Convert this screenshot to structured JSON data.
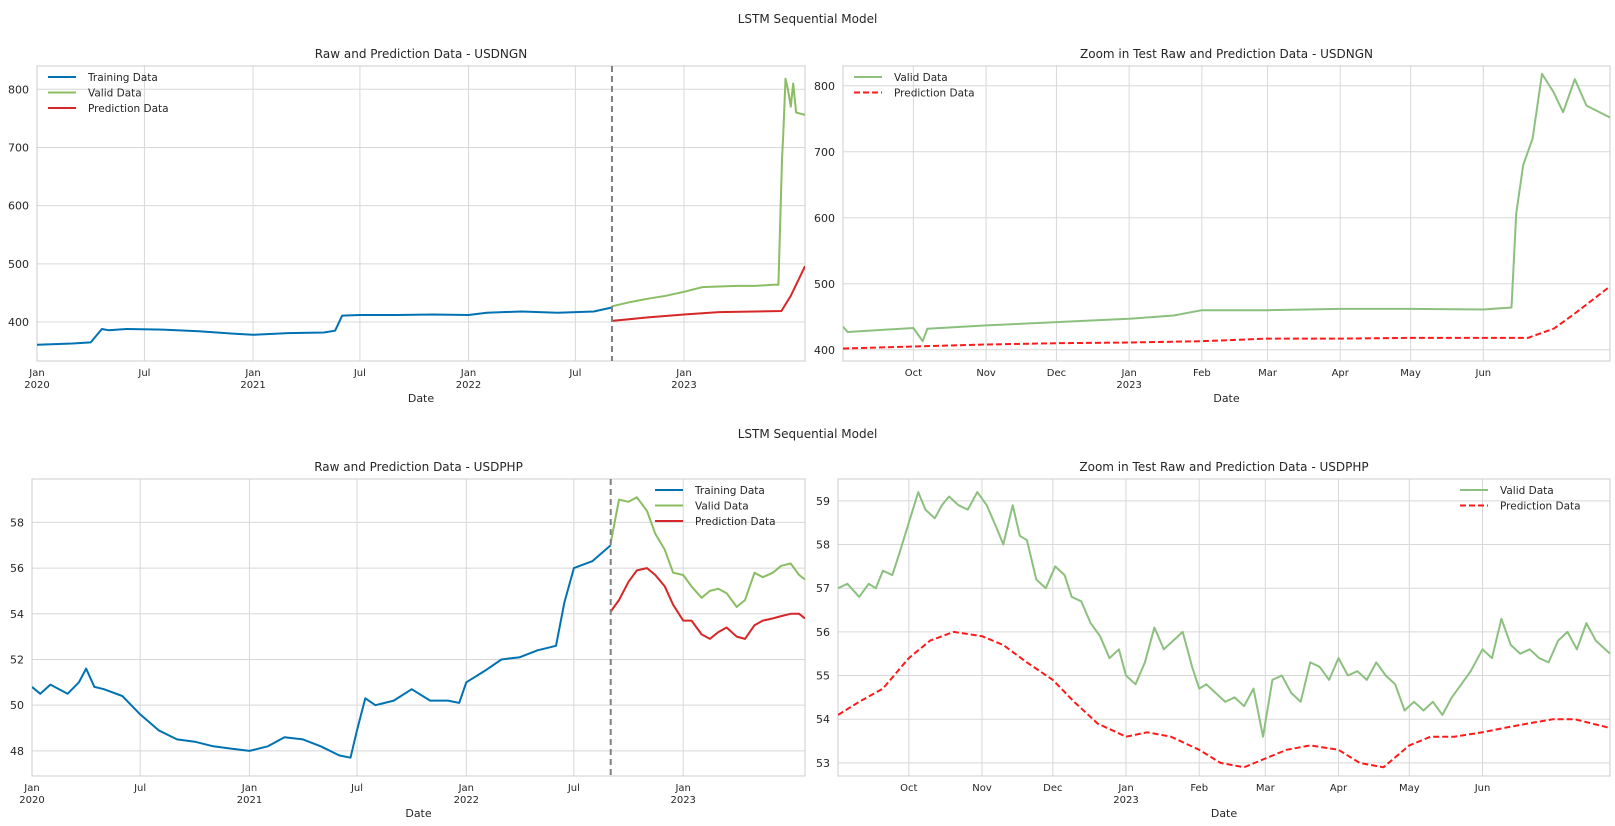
{
  "figure": {
    "suptitle_top": "LSTM Sequential Model",
    "suptitle_bottom": "LSTM Sequential Model"
  },
  "colors": {
    "training": "#0072b2",
    "valid": "#8bbd62",
    "valid_zoom": "#8cc07f",
    "prediction": "#d62728",
    "prediction_zoom": "#ff1a1a",
    "split_line": "#808080",
    "grid": "#d8d8d8",
    "frame": "#cccccc",
    "text": "#262626"
  },
  "chart_data": [
    {
      "id": "ngn_full",
      "type": "line",
      "title": "Raw and Prediction Data - USDNGN",
      "xlabel": "Date",
      "ylabel": "",
      "x_range": [
        "2020-01-01",
        "2023-07-25"
      ],
      "ylim": [
        333,
        840
      ],
      "yticks": [
        400,
        500,
        600,
        700,
        800
      ],
      "xticks": [
        {
          "date": "2020-01-01",
          "label": "Jan",
          "sub": "2020"
        },
        {
          "date": "2020-07-01",
          "label": "Jul",
          "sub": ""
        },
        {
          "date": "2021-01-01",
          "label": "Jan",
          "sub": "2021"
        },
        {
          "date": "2021-07-01",
          "label": "Jul",
          "sub": ""
        },
        {
          "date": "2022-01-01",
          "label": "Jan",
          "sub": "2022"
        },
        {
          "date": "2022-07-01",
          "label": "Jul",
          "sub": ""
        },
        {
          "date": "2023-01-01",
          "label": "Jan",
          "sub": "2023"
        }
      ],
      "split_date": "2022-09-01",
      "legend": "upper-left",
      "series": [
        {
          "name": "Training Data",
          "style": "training",
          "x": [
            "2020-01-01",
            "2020-03-01",
            "2020-04-01",
            "2020-04-20",
            "2020-05-01",
            "2020-06-01",
            "2020-08-01",
            "2020-10-01",
            "2020-12-01",
            "2021-01-01",
            "2021-03-01",
            "2021-05-01",
            "2021-05-20",
            "2021-06-01",
            "2021-07-01",
            "2021-09-01",
            "2021-11-01",
            "2022-01-01",
            "2022-02-01",
            "2022-04-01",
            "2022-06-01",
            "2022-08-01",
            "2022-09-01"
          ],
          "y": [
            361,
            363,
            365,
            388,
            386,
            388,
            387,
            384,
            380,
            378,
            381,
            382,
            385,
            411,
            412,
            412,
            413,
            412,
            416,
            418,
            416,
            418,
            425
          ]
        },
        {
          "name": "Valid Data",
          "style": "valid",
          "x": [
            "2022-09-01",
            "2022-10-01",
            "2022-11-01",
            "2022-12-01",
            "2023-01-01",
            "2023-02-01",
            "2023-03-01",
            "2023-04-01",
            "2023-05-01",
            "2023-06-01",
            "2023-06-10",
            "2023-06-14",
            "2023-06-16",
            "2023-06-18",
            "2023-06-22",
            "2023-06-26",
            "2023-07-01",
            "2023-07-05",
            "2023-07-10",
            "2023-07-25"
          ],
          "y": [
            427,
            434,
            440,
            445,
            452,
            460,
            461,
            462,
            462,
            464,
            464,
            606,
            680,
            720,
            818,
            800,
            770,
            810,
            760,
            756
          ]
        },
        {
          "name": "Prediction Data",
          "style": "prediction",
          "x": [
            "2022-09-01",
            "2022-11-01",
            "2023-01-01",
            "2023-03-01",
            "2023-05-01",
            "2023-06-15",
            "2023-07-01",
            "2023-07-25"
          ],
          "y": [
            402,
            408,
            413,
            417,
            418,
            419,
            445,
            496
          ]
        }
      ]
    },
    {
      "id": "ngn_zoom",
      "type": "line",
      "title": "Zoom in Test Raw and Prediction Data - USDNGN",
      "xlabel": "Date",
      "ylabel": "",
      "x_range": [
        "2022-09-01",
        "2023-07-25"
      ],
      "ylim": [
        383,
        830
      ],
      "yticks": [
        400,
        500,
        600,
        700,
        800
      ],
      "xticks": [
        {
          "date": "2022-10-01",
          "label": "Oct",
          "sub": ""
        },
        {
          "date": "2022-11-01",
          "label": "Nov",
          "sub": ""
        },
        {
          "date": "2022-12-01",
          "label": "Dec",
          "sub": ""
        },
        {
          "date": "2023-01-01",
          "label": "Jan",
          "sub": "2023"
        },
        {
          "date": "2023-02-01",
          "label": "Feb",
          "sub": ""
        },
        {
          "date": "2023-03-01",
          "label": "Mar",
          "sub": ""
        },
        {
          "date": "2023-04-01",
          "label": "Apr",
          "sub": ""
        },
        {
          "date": "2023-05-01",
          "label": "May",
          "sub": ""
        },
        {
          "date": "2023-06-01",
          "label": "Jun",
          "sub": ""
        }
      ],
      "legend": "upper-left",
      "series": [
        {
          "name": "Valid Data",
          "style": "valid_zoom",
          "x": [
            "2022-09-01",
            "2022-09-03",
            "2022-10-01",
            "2022-10-05",
            "2022-10-07",
            "2022-11-01",
            "2022-12-01",
            "2023-01-01",
            "2023-01-20",
            "2023-02-01",
            "2023-03-01",
            "2023-04-01",
            "2023-05-01",
            "2023-06-01",
            "2023-06-13",
            "2023-06-15",
            "2023-06-18",
            "2023-06-22",
            "2023-06-26",
            "2023-07-01",
            "2023-07-05",
            "2023-07-10",
            "2023-07-15",
            "2023-07-25"
          ],
          "y": [
            435,
            427,
            433,
            413,
            432,
            437,
            442,
            447,
            452,
            460,
            460,
            462,
            462,
            461,
            464,
            606,
            680,
            720,
            818,
            790,
            760,
            810,
            770,
            752
          ]
        },
        {
          "name": "Prediction Data",
          "style": "prediction_zoom",
          "x": [
            "2022-09-01",
            "2022-10-01",
            "2022-11-01",
            "2022-12-01",
            "2023-01-01",
            "2023-02-01",
            "2023-03-01",
            "2023-04-01",
            "2023-05-01",
            "2023-06-01",
            "2023-06-20",
            "2023-07-01",
            "2023-07-10",
            "2023-07-25"
          ],
          "y": [
            402,
            405,
            408,
            410,
            411,
            413,
            417,
            417,
            418,
            418,
            418,
            432,
            455,
            496
          ]
        }
      ]
    },
    {
      "id": "php_full",
      "type": "line",
      "title": "Raw and Prediction Data - USDPHP",
      "xlabel": "Date",
      "ylabel": "",
      "x_range": [
        "2020-01-01",
        "2023-07-25"
      ],
      "ylim": [
        46.9,
        59.9
      ],
      "yticks": [
        48,
        50,
        52,
        54,
        56,
        58
      ],
      "xticks": [
        {
          "date": "2020-01-01",
          "label": "Jan",
          "sub": "2020"
        },
        {
          "date": "2020-07-01",
          "label": "Jul",
          "sub": ""
        },
        {
          "date": "2021-01-01",
          "label": "Jan",
          "sub": "2021"
        },
        {
          "date": "2021-07-01",
          "label": "Jul",
          "sub": ""
        },
        {
          "date": "2022-01-01",
          "label": "Jan",
          "sub": "2022"
        },
        {
          "date": "2022-07-01",
          "label": "Jul",
          "sub": ""
        },
        {
          "date": "2023-01-01",
          "label": "Jan",
          "sub": "2023"
        }
      ],
      "split_date": "2022-09-01",
      "legend": "upper-right",
      "series": [
        {
          "name": "Training Data",
          "style": "training",
          "x": [
            "2020-01-01",
            "2020-01-15",
            "2020-02-01",
            "2020-03-01",
            "2020-03-20",
            "2020-04-01",
            "2020-04-15",
            "2020-05-01",
            "2020-06-01",
            "2020-07-01",
            "2020-08-01",
            "2020-09-01",
            "2020-10-01",
            "2020-11-01",
            "2020-12-01",
            "2021-01-01",
            "2021-02-01",
            "2021-03-01",
            "2021-04-01",
            "2021-05-01",
            "2021-06-01",
            "2021-06-20",
            "2021-07-01",
            "2021-07-15",
            "2021-08-01",
            "2021-09-01",
            "2021-10-01",
            "2021-11-01",
            "2021-12-01",
            "2021-12-20",
            "2022-01-01",
            "2022-02-01",
            "2022-03-01",
            "2022-04-01",
            "2022-05-01",
            "2022-06-01",
            "2022-06-15",
            "2022-07-01",
            "2022-08-01",
            "2022-09-01"
          ],
          "y": [
            50.8,
            50.5,
            50.9,
            50.5,
            51.0,
            51.6,
            50.8,
            50.7,
            50.4,
            49.6,
            48.9,
            48.5,
            48.4,
            48.2,
            48.1,
            48.0,
            48.2,
            48.6,
            48.5,
            48.2,
            47.8,
            47.7,
            48.9,
            50.3,
            50.0,
            50.2,
            50.7,
            50.2,
            50.2,
            50.1,
            51.0,
            51.5,
            52.0,
            52.1,
            52.4,
            52.6,
            54.5,
            56.0,
            56.3,
            57.0
          ]
        },
        {
          "name": "Valid Data",
          "style": "valid",
          "x": [
            "2022-09-01",
            "2022-09-15",
            "2022-10-01",
            "2022-10-15",
            "2022-11-01",
            "2022-11-15",
            "2022-12-01",
            "2022-12-15",
            "2023-01-01",
            "2023-01-15",
            "2023-02-01",
            "2023-02-15",
            "2023-03-01",
            "2023-03-15",
            "2023-04-01",
            "2023-04-15",
            "2023-05-01",
            "2023-05-15",
            "2023-06-01",
            "2023-06-15",
            "2023-07-01",
            "2023-07-15",
            "2023-07-25"
          ],
          "y": [
            57.1,
            59.0,
            58.9,
            59.1,
            58.5,
            57.5,
            56.8,
            55.8,
            55.7,
            55.2,
            54.7,
            55.0,
            55.1,
            54.9,
            54.3,
            54.6,
            55.8,
            55.6,
            55.8,
            56.1,
            56.2,
            55.7,
            55.5
          ]
        },
        {
          "name": "Prediction Data",
          "style": "prediction",
          "x": [
            "2022-09-01",
            "2022-09-15",
            "2022-10-01",
            "2022-10-15",
            "2022-11-01",
            "2022-11-15",
            "2022-12-01",
            "2022-12-15",
            "2023-01-01",
            "2023-01-15",
            "2023-02-01",
            "2023-02-15",
            "2023-03-01",
            "2023-03-15",
            "2023-04-01",
            "2023-04-15",
            "2023-05-01",
            "2023-05-15",
            "2023-06-01",
            "2023-06-15",
            "2023-07-01",
            "2023-07-15",
            "2023-07-25"
          ],
          "y": [
            54.1,
            54.6,
            55.4,
            55.9,
            56.0,
            55.7,
            55.2,
            54.4,
            53.7,
            53.7,
            53.1,
            52.9,
            53.2,
            53.4,
            53.0,
            52.9,
            53.5,
            53.7,
            53.8,
            53.9,
            54.0,
            54.0,
            53.8
          ]
        }
      ]
    },
    {
      "id": "php_zoom",
      "type": "line",
      "title": "Zoom in Test Raw and Prediction Data - USDPHP",
      "xlabel": "Date",
      "ylabel": "",
      "x_range": [
        "2022-09-01",
        "2023-07-25"
      ],
      "ylim": [
        52.7,
        59.5
      ],
      "yticks": [
        53,
        54,
        55,
        56,
        57,
        58,
        59
      ],
      "xticks": [
        {
          "date": "2022-10-01",
          "label": "Oct",
          "sub": ""
        },
        {
          "date": "2022-11-01",
          "label": "Nov",
          "sub": ""
        },
        {
          "date": "2022-12-01",
          "label": "Dec",
          "sub": ""
        },
        {
          "date": "2023-01-01",
          "label": "Jan",
          "sub": "2023"
        },
        {
          "date": "2023-02-01",
          "label": "Feb",
          "sub": ""
        },
        {
          "date": "2023-03-01",
          "label": "Mar",
          "sub": ""
        },
        {
          "date": "2023-04-01",
          "label": "Apr",
          "sub": ""
        },
        {
          "date": "2023-05-01",
          "label": "May",
          "sub": ""
        },
        {
          "date": "2023-06-01",
          "label": "Jun",
          "sub": ""
        }
      ],
      "legend": "upper-right",
      "series": [
        {
          "name": "Valid Data",
          "style": "valid_zoom",
          "x": [
            "2022-09-01",
            "2022-09-05",
            "2022-09-10",
            "2022-09-14",
            "2022-09-17",
            "2022-09-20",
            "2022-09-24",
            "2022-09-27",
            "2022-10-01",
            "2022-10-05",
            "2022-10-08",
            "2022-10-12",
            "2022-10-15",
            "2022-10-18",
            "2022-10-22",
            "2022-10-26",
            "2022-10-30",
            "2022-11-03",
            "2022-11-07",
            "2022-11-10",
            "2022-11-14",
            "2022-11-17",
            "2022-11-20",
            "2022-11-24",
            "2022-11-28",
            "2022-12-02",
            "2022-12-06",
            "2022-12-09",
            "2022-12-13",
            "2022-12-17",
            "2022-12-21",
            "2022-12-25",
            "2022-12-29",
            "2023-01-01",
            "2023-01-05",
            "2023-01-09",
            "2023-01-13",
            "2023-01-17",
            "2023-01-21",
            "2023-01-25",
            "2023-01-29",
            "2023-02-01",
            "2023-02-04",
            "2023-02-08",
            "2023-02-12",
            "2023-02-16",
            "2023-02-20",
            "2023-02-24",
            "2023-02-28",
            "2023-03-04",
            "2023-03-08",
            "2023-03-12",
            "2023-03-16",
            "2023-03-20",
            "2023-03-24",
            "2023-03-28",
            "2023-04-01",
            "2023-04-05",
            "2023-04-09",
            "2023-04-13",
            "2023-04-17",
            "2023-04-21",
            "2023-04-25",
            "2023-04-29",
            "2023-05-03",
            "2023-05-07",
            "2023-05-11",
            "2023-05-15",
            "2023-05-19",
            "2023-05-23",
            "2023-05-27",
            "2023-06-01",
            "2023-06-05",
            "2023-06-09",
            "2023-06-13",
            "2023-06-17",
            "2023-06-21",
            "2023-06-25",
            "2023-06-29",
            "2023-07-03",
            "2023-07-07",
            "2023-07-11",
            "2023-07-15",
            "2023-07-19",
            "2023-07-25"
          ],
          "y": [
            57.0,
            57.1,
            56.8,
            57.1,
            57.0,
            57.4,
            57.3,
            57.8,
            58.5,
            59.2,
            58.8,
            58.6,
            58.9,
            59.1,
            58.9,
            58.8,
            59.2,
            58.9,
            58.4,
            58.0,
            58.9,
            58.2,
            58.1,
            57.2,
            57.0,
            57.5,
            57.3,
            56.8,
            56.7,
            56.2,
            55.9,
            55.4,
            55.6,
            55.0,
            54.8,
            55.3,
            56.1,
            55.6,
            55.8,
            56.0,
            55.2,
            54.7,
            54.8,
            54.6,
            54.4,
            54.5,
            54.3,
            54.7,
            53.6,
            54.9,
            55.0,
            54.6,
            54.4,
            55.3,
            55.2,
            54.9,
            55.4,
            55.0,
            55.1,
            54.9,
            55.3,
            55.0,
            54.8,
            54.2,
            54.4,
            54.2,
            54.4,
            54.1,
            54.5,
            54.8,
            55.1,
            55.6,
            55.4,
            56.3,
            55.7,
            55.5,
            55.6,
            55.4,
            55.3,
            55.8,
            56.0,
            55.6,
            56.2,
            55.8,
            55.5
          ]
        },
        {
          "name": "Prediction Data",
          "style": "prediction_zoom",
          "x": [
            "2022-09-01",
            "2022-09-10",
            "2022-09-20",
            "2022-10-01",
            "2022-10-10",
            "2022-10-20",
            "2022-11-01",
            "2022-11-10",
            "2022-11-20",
            "2022-12-01",
            "2022-12-10",
            "2022-12-20",
            "2023-01-01",
            "2023-01-10",
            "2023-01-20",
            "2023-02-01",
            "2023-02-10",
            "2023-02-20",
            "2023-03-01",
            "2023-03-10",
            "2023-03-20",
            "2023-04-01",
            "2023-04-10",
            "2023-04-20",
            "2023-05-01",
            "2023-05-10",
            "2023-05-20",
            "2023-06-01",
            "2023-06-10",
            "2023-06-20",
            "2023-07-01",
            "2023-07-10",
            "2023-07-25"
          ],
          "y": [
            54.1,
            54.4,
            54.7,
            55.4,
            55.8,
            56.0,
            55.9,
            55.7,
            55.3,
            54.9,
            54.4,
            53.9,
            53.6,
            53.7,
            53.6,
            53.3,
            53.0,
            52.9,
            53.1,
            53.3,
            53.4,
            53.3,
            53.0,
            52.9,
            53.4,
            53.6,
            53.6,
            53.7,
            53.8,
            53.9,
            54.0,
            54.0,
            53.8
          ]
        }
      ]
    }
  ]
}
